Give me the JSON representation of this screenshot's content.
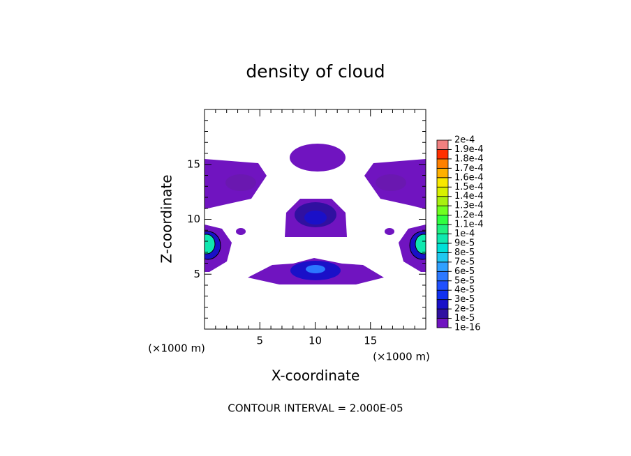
{
  "chart_data": {
    "type": "contour",
    "title": "density of cloud",
    "x_label": "X-coordinate",
    "y_label": "Z-coordinate",
    "x_unit_labels": [
      "(×1000 m)",
      "(×1000 m)"
    ],
    "annotation": "CONTOUR INTERVAL = 2.000E-05",
    "xlim": [
      0,
      20
    ],
    "ylim": [
      0,
      20
    ],
    "xticks": [
      5,
      10,
      15
    ],
    "yticks": [
      5,
      10,
      15
    ],
    "xminorticks": [
      1,
      2,
      3,
      4,
      6,
      7,
      8,
      9,
      11,
      12,
      13,
      14,
      16,
      17,
      18,
      19
    ],
    "yminorticks": [
      1,
      2,
      3,
      4,
      6,
      7,
      8,
      9,
      11,
      12,
      13,
      14,
      16,
      17,
      18,
      19
    ],
    "colorbar_ticks": [
      {
        "value": 1e-16,
        "label": "1e-16"
      },
      {
        "value": 1e-05,
        "label": "1e-5"
      },
      {
        "value": 2e-05,
        "label": "2e-5"
      },
      {
        "value": 3e-05,
        "label": "3e-5"
      },
      {
        "value": 4e-05,
        "label": "4e-5"
      },
      {
        "value": 5e-05,
        "label": "5e-5"
      },
      {
        "value": 6e-05,
        "label": "6e-5"
      },
      {
        "value": 7e-05,
        "label": "7e-5"
      },
      {
        "value": 8e-05,
        "label": "8e-5"
      },
      {
        "value": 9e-05,
        "label": "9e-5"
      },
      {
        "value": 0.0001,
        "label": "1e-4"
      },
      {
        "value": 0.00011,
        "label": "1.1e-4"
      },
      {
        "value": 0.00012,
        "label": "1.2e-4"
      },
      {
        "value": 0.00013,
        "label": "1.3e-4"
      },
      {
        "value": 0.00014,
        "label": "1.4e-4"
      },
      {
        "value": 0.00015,
        "label": "1.5e-4"
      },
      {
        "value": 0.00016,
        "label": "1.6e-4"
      },
      {
        "value": 0.00017,
        "label": "1.7e-4"
      },
      {
        "value": 0.00018,
        "label": "1.8e-4"
      },
      {
        "value": 0.00019,
        "label": "1.9e-4"
      },
      {
        "value": 0.0002,
        "label": "2e-4"
      }
    ],
    "colorbar_colors": [
      "#7014c0",
      "#3010a0",
      "#1a10c8",
      "#1030f0",
      "#2050ff",
      "#2c78ff",
      "#30a0ff",
      "#20c8f0",
      "#00e0d8",
      "#10e8b0",
      "#20f080",
      "#30ff40",
      "#70ff20",
      "#a8f010",
      "#d8f000",
      "#f8e800",
      "#ffb000",
      "#ff8000",
      "#ff3000",
      "#f08080"
    ]
  }
}
